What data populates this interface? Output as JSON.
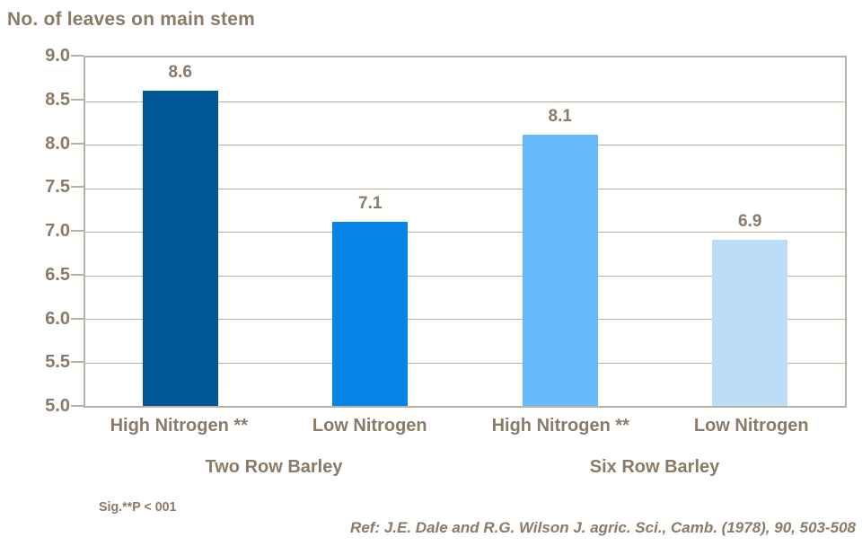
{
  "colors": {
    "text_brown": "#8a7a67",
    "grid_gray": "#b9b0a4",
    "background": "#ffffff"
  },
  "chart_data": {
    "type": "bar",
    "title": "No. of leaves on main stem",
    "categories": [
      "High Nitrogen **",
      "Low Nitrogen",
      "High Nitrogen **",
      "Low Nitrogen"
    ],
    "values": [
      8.6,
      7.1,
      8.1,
      6.9
    ],
    "bar_colors": [
      "#005796",
      "#0584e6",
      "#66bcfa",
      "#bbddf8"
    ],
    "groups": [
      {
        "label": "Two Row Barley",
        "center_fraction": 0.25
      },
      {
        "label": "Six Row Barley",
        "center_fraction": 0.75
      }
    ],
    "ylim": [
      5.0,
      9.0
    ],
    "ytick_step": 0.5,
    "yticks": [
      "9.0",
      "8.5",
      "8.0",
      "7.5",
      "7.0",
      "6.5",
      "6.0",
      "5.5",
      "5.0"
    ],
    "grid": true,
    "legend": "none",
    "xlabel": "",
    "ylabel": ""
  },
  "footnotes": {
    "significance": "Sig.**P  < 001",
    "reference": "Ref: J.E. Dale and R.G. Wilson J. agric. Sci., Camb. (1978), 90, 503-508"
  }
}
